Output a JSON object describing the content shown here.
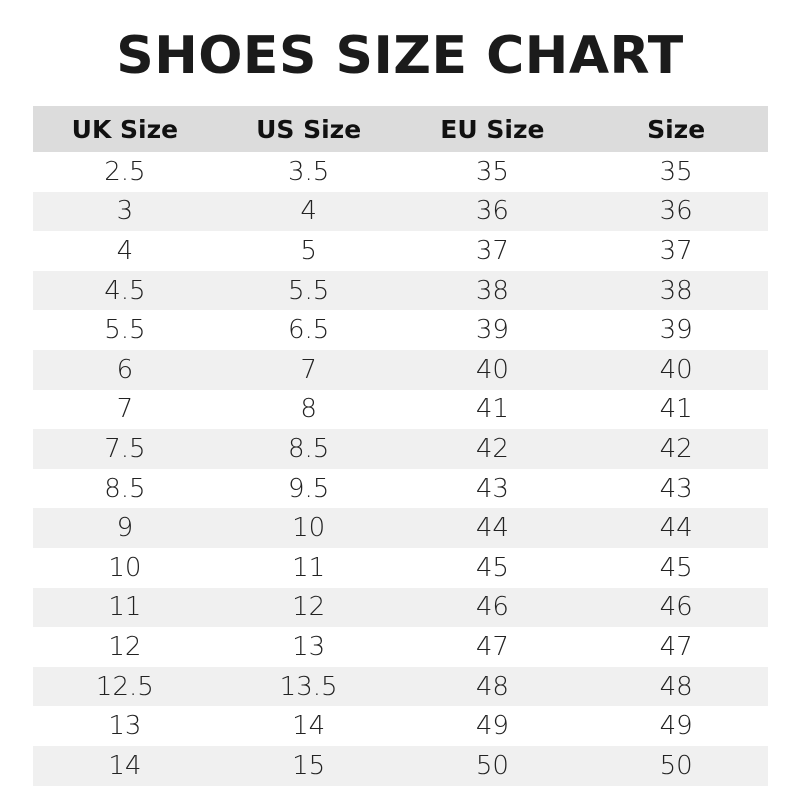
{
  "chart_data": {
    "type": "table",
    "title": "SHOES SIZE CHART",
    "columns": [
      "UK Size",
      "US Size",
      "EU Size",
      "Size"
    ],
    "rows": [
      [
        "2.5",
        "3.5",
        "35",
        "35"
      ],
      [
        "3",
        "4",
        "36",
        "36"
      ],
      [
        "4",
        "5",
        "37",
        "37"
      ],
      [
        "4.5",
        "5.5",
        "38",
        "38"
      ],
      [
        "5.5",
        "6.5",
        "39",
        "39"
      ],
      [
        "6",
        "7",
        "40",
        "40"
      ],
      [
        "7",
        "8",
        "41",
        "41"
      ],
      [
        "7.5",
        "8.5",
        "42",
        "42"
      ],
      [
        "8.5",
        "9.5",
        "43",
        "43"
      ],
      [
        "9",
        "10",
        "44",
        "44"
      ],
      [
        "10",
        "11",
        "45",
        "45"
      ],
      [
        "11",
        "12",
        "46",
        "46"
      ],
      [
        "12",
        "13",
        "47",
        "47"
      ],
      [
        "12.5",
        "13.5",
        "48",
        "48"
      ],
      [
        "13",
        "14",
        "49",
        "49"
      ],
      [
        "14",
        "15",
        "50",
        "50"
      ]
    ],
    "colors": {
      "header_bg": "#dcdcdc",
      "alt_row_bg": "#f0f0f0"
    }
  }
}
